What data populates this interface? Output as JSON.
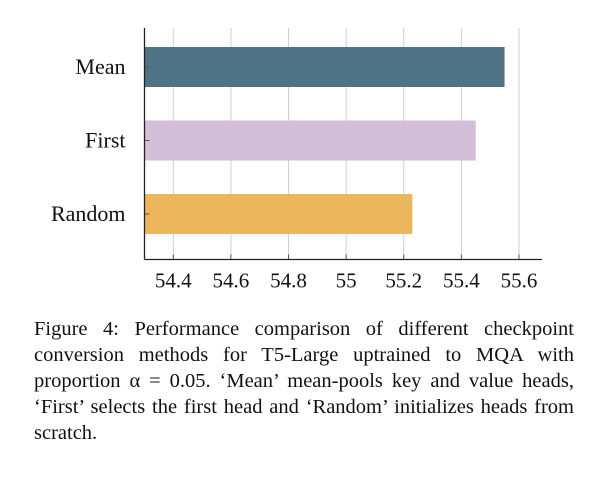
{
  "chart_data": {
    "type": "bar",
    "orientation": "horizontal",
    "categories": [
      "Mean",
      "First",
      "Random"
    ],
    "values": [
      55.55,
      55.45,
      55.23
    ],
    "colors": [
      "#4e7384",
      "#d3bfd7",
      "#ebb65c"
    ],
    "xlim": [
      54.3,
      55.68
    ],
    "xticks": [
      "54.4",
      "54.6",
      "54.8",
      "55",
      "55.2",
      "55.4",
      "55.6"
    ],
    "grid": "vertical",
    "title": "",
    "xlabel": "",
    "ylabel": ""
  },
  "caption": "Figure 4: Performance comparison of different checkpoint conversion methods for T5-Large uptrained to MQA with proportion α = 0.05. ‘Mean’ mean-pools key and value heads, ‘First’ selects the first head and ‘Random’ initializes heads from scratch."
}
